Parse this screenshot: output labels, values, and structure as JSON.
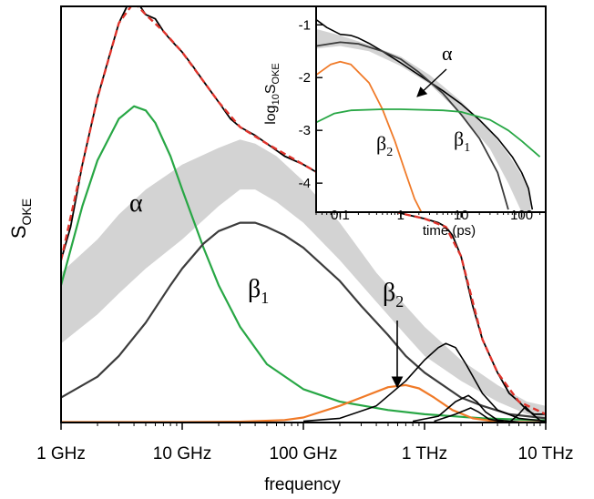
{
  "chart_data": [
    {
      "type": "line",
      "xlabel": "frequency",
      "ylabel_main": "S",
      "ylabel_sub": "OKE",
      "xscale": "log",
      "xlim": [
        1,
        10000
      ],
      "ylim": [
        0,
        1.0
      ],
      "xticks": [
        {
          "value": 1,
          "label": "1 GHz"
        },
        {
          "value": 10,
          "label": "10 GHz"
        },
        {
          "value": 100,
          "label": "100 GHz"
        },
        {
          "value": 1000,
          "label": "1 THz"
        },
        {
          "value": 10000,
          "label": "10 THz"
        }
      ],
      "annotations": {
        "alpha": "α",
        "beta": "β",
        "sub1": "1",
        "sub2": "2"
      },
      "colors": {
        "data": "#000000",
        "fit": "#e0342c",
        "alpha": "#28a745",
        "beta1": "#3c3c3c",
        "beta2": "#f07a28",
        "band": "#d3d3d3",
        "high": "#000000"
      },
      "series": [
        {
          "key": "data",
          "style": "solid black",
          "points": [
            [
              1,
              0.39
            ],
            [
              1.2,
              0.47
            ],
            [
              1.5,
              0.62
            ],
            [
              2,
              0.78
            ],
            [
              2.5,
              0.88
            ],
            [
              3,
              0.96
            ],
            [
              3.5,
              1.0
            ],
            [
              4,
              1.01
            ],
            [
              4.5,
              1.0
            ],
            [
              5,
              0.98
            ],
            [
              6,
              0.97
            ],
            [
              7,
              0.94
            ],
            [
              8,
              0.92
            ],
            [
              10,
              0.89
            ],
            [
              12,
              0.86
            ],
            [
              15,
              0.82
            ],
            [
              20,
              0.77
            ],
            [
              25,
              0.73
            ],
            [
              30,
              0.71
            ],
            [
              40,
              0.69
            ],
            [
              50,
              0.67
            ],
            [
              70,
              0.64
            ],
            [
              100,
              0.62
            ],
            [
              150,
              0.59
            ],
            [
              200,
              0.57
            ],
            [
              300,
              0.54
            ],
            [
              400,
              0.52
            ],
            [
              500,
              0.51
            ],
            [
              700,
              0.5
            ],
            [
              1000,
              0.49
            ],
            [
              1300,
              0.48
            ],
            [
              1500,
              0.47
            ],
            [
              1700,
              0.45
            ],
            [
              2000,
              0.4
            ],
            [
              2500,
              0.28
            ],
            [
              3000,
              0.2
            ],
            [
              4000,
              0.12
            ],
            [
              5000,
              0.07
            ],
            [
              6000,
              0.05
            ],
            [
              7000,
              0.03
            ],
            [
              8000,
              0.02
            ],
            [
              10000,
              0.02
            ]
          ]
        },
        {
          "key": "fit",
          "style": "dashed red",
          "points": [
            [
              1,
              0.39
            ],
            [
              1.5,
              0.62
            ],
            [
              2,
              0.78
            ],
            [
              3,
              0.96
            ],
            [
              4,
              1.01
            ],
            [
              5,
              0.98
            ],
            [
              7,
              0.94
            ],
            [
              10,
              0.89
            ],
            [
              15,
              0.82
            ],
            [
              20,
              0.77
            ],
            [
              30,
              0.71
            ],
            [
              50,
              0.67
            ],
            [
              100,
              0.62
            ],
            [
              200,
              0.57
            ],
            [
              400,
              0.52
            ],
            [
              700,
              0.5
            ],
            [
              1000,
              0.49
            ],
            [
              1500,
              0.47
            ],
            [
              2000,
              0.4
            ],
            [
              3000,
              0.2
            ],
            [
              4000,
              0.12
            ],
            [
              6000,
              0.05
            ],
            [
              10000,
              0.02
            ]
          ]
        },
        {
          "key": "alpha",
          "style": "solid green",
          "points": [
            [
              1,
              0.33
            ],
            [
              1.5,
              0.52
            ],
            [
              2,
              0.63
            ],
            [
              3,
              0.73
            ],
            [
              4,
              0.76
            ],
            [
              5,
              0.75
            ],
            [
              6,
              0.72
            ],
            [
              8,
              0.64
            ],
            [
              10,
              0.56
            ],
            [
              15,
              0.42
            ],
            [
              20,
              0.33
            ],
            [
              30,
              0.23
            ],
            [
              50,
              0.14
            ],
            [
              100,
              0.08
            ],
            [
              200,
              0.05
            ],
            [
              500,
              0.03
            ],
            [
              1000,
              0.02
            ],
            [
              3000,
              0.01
            ],
            [
              10000,
              0.005
            ]
          ]
        },
        {
          "key": "beta1",
          "style": "solid dark gray",
          "points": [
            [
              1,
              0.06
            ],
            [
              2,
              0.11
            ],
            [
              3,
              0.16
            ],
            [
              5,
              0.24
            ],
            [
              8,
              0.33
            ],
            [
              10,
              0.37
            ],
            [
              15,
              0.43
            ],
            [
              20,
              0.46
            ],
            [
              30,
              0.48
            ],
            [
              40,
              0.48
            ],
            [
              50,
              0.47
            ],
            [
              70,
              0.45
            ],
            [
              100,
              0.42
            ],
            [
              200,
              0.34
            ],
            [
              300,
              0.28
            ],
            [
              500,
              0.21
            ],
            [
              700,
              0.16
            ],
            [
              1000,
              0.12
            ],
            [
              2000,
              0.06
            ],
            [
              3000,
              0.04
            ],
            [
              5000,
              0.02
            ],
            [
              10000,
              0.01
            ]
          ]
        },
        {
          "key": "beta2",
          "style": "solid orange",
          "points": [
            [
              1,
              0.001
            ],
            [
              10,
              0.001
            ],
            [
              30,
              0.002
            ],
            [
              70,
              0.006
            ],
            [
              100,
              0.012
            ],
            [
              200,
              0.04
            ],
            [
              300,
              0.06
            ],
            [
              500,
              0.085
            ],
            [
              700,
              0.09
            ],
            [
              900,
              0.082
            ],
            [
              1200,
              0.06
            ],
            [
              1700,
              0.03
            ],
            [
              2500,
              0.01
            ],
            [
              4000,
              0.002
            ],
            [
              10000,
              0.0
            ]
          ]
        },
        {
          "key": "high_main",
          "style": "solid black",
          "points": [
            [
              100,
              0.003
            ],
            [
              200,
              0.01
            ],
            [
              400,
              0.04
            ],
            [
              700,
              0.1
            ],
            [
              1000,
              0.15
            ],
            [
              1300,
              0.18
            ],
            [
              1500,
              0.19
            ],
            [
              1800,
              0.18
            ],
            [
              2200,
              0.14
            ],
            [
              3000,
              0.07
            ],
            [
              4000,
              0.03
            ],
            [
              6000,
              0.01
            ],
            [
              10000,
              0.003
            ]
          ]
        },
        {
          "key": "high_b",
          "style": "solid black",
          "points": [
            [
              800,
              0.003
            ],
            [
              1300,
              0.015
            ],
            [
              1800,
              0.05
            ],
            [
              2300,
              0.065
            ],
            [
              2700,
              0.05
            ],
            [
              3200,
              0.025
            ],
            [
              4000,
              0.006
            ],
            [
              6000,
              0.001
            ]
          ]
        },
        {
          "key": "high_c",
          "style": "solid black",
          "points": [
            [
              1200,
              0.003
            ],
            [
              1800,
              0.02
            ],
            [
              2400,
              0.035
            ],
            [
              2800,
              0.025
            ],
            [
              3400,
              0.008
            ],
            [
              4500,
              0.001
            ]
          ]
        },
        {
          "key": "high_d",
          "style": "solid black",
          "points": [
            [
              5000,
              0.0
            ],
            [
              6000,
              0.02
            ],
            [
              6800,
              0.038
            ],
            [
              7800,
              0.02
            ],
            [
              9000,
              0.005
            ],
            [
              10000,
              0.0
            ]
          ]
        }
      ],
      "band": {
        "key": "band",
        "points": [
          [
            1,
            0.19,
            0.36
          ],
          [
            2,
            0.26,
            0.44
          ],
          [
            3,
            0.31,
            0.5
          ],
          [
            5,
            0.37,
            0.56
          ],
          [
            10,
            0.44,
            0.62
          ],
          [
            20,
            0.52,
            0.66
          ],
          [
            30,
            0.56,
            0.68
          ],
          [
            40,
            0.56,
            0.67
          ],
          [
            60,
            0.53,
            0.64
          ],
          [
            100,
            0.48,
            0.58
          ],
          [
            200,
            0.39,
            0.48
          ],
          [
            400,
            0.29,
            0.36
          ],
          [
            700,
            0.21,
            0.28
          ],
          [
            1000,
            0.16,
            0.23
          ],
          [
            2000,
            0.1,
            0.15
          ],
          [
            4000,
            0.05,
            0.09
          ],
          [
            7000,
            0.02,
            0.05
          ],
          [
            10000,
            0.01,
            0.04
          ]
        ]
      }
    },
    {
      "type": "line",
      "xlabel": "time (ps)",
      "ylabel_main": "log",
      "ylabel_sub1": "10",
      "ylabel_mid": "S",
      "ylabel_sub2": "OKE",
      "xscale": "log",
      "xlim": [
        0.04,
        250
      ],
      "ylim": [
        -4.55,
        -0.65
      ],
      "xticks": [
        {
          "value": 0.1,
          "label": "0.1"
        },
        {
          "value": 1,
          "label": "1"
        },
        {
          "value": 10,
          "label": "10"
        },
        {
          "value": 100,
          "label": "100"
        }
      ],
      "yticks": [
        {
          "value": -1,
          "label": "-1"
        },
        {
          "value": -2,
          "label": "-2"
        },
        {
          "value": -3,
          "label": "-3"
        },
        {
          "value": -4,
          "label": "-4"
        }
      ],
      "colors": {
        "data": "#000000",
        "alpha": "#28a745",
        "beta1": "#3c3c3c",
        "beta2": "#f07a28",
        "band": "#d3d3d3"
      },
      "series": [
        {
          "key": "data",
          "style": "solid black",
          "points": [
            [
              0.04,
              -0.9
            ],
            [
              0.06,
              -1.05
            ],
            [
              0.1,
              -1.18
            ],
            [
              0.15,
              -1.2
            ],
            [
              0.2,
              -1.25
            ],
            [
              0.3,
              -1.35
            ],
            [
              0.5,
              -1.5
            ],
            [
              1,
              -1.72
            ],
            [
              2,
              -1.95
            ],
            [
              5,
              -2.25
            ],
            [
              10,
              -2.5
            ],
            [
              20,
              -2.8
            ],
            [
              40,
              -3.15
            ],
            [
              70,
              -3.5
            ],
            [
              100,
              -3.8
            ],
            [
              130,
              -4.1
            ],
            [
              150,
              -4.5
            ]
          ]
        },
        {
          "key": "beta1",
          "style": "solid dark gray",
          "points": [
            [
              0.04,
              -1.4
            ],
            [
              0.1,
              -1.33
            ],
            [
              0.2,
              -1.36
            ],
            [
              0.5,
              -1.5
            ],
            [
              1,
              -1.65
            ],
            [
              2,
              -1.9
            ],
            [
              5,
              -2.3
            ],
            [
              10,
              -2.7
            ],
            [
              20,
              -3.15
            ],
            [
              40,
              -3.8
            ],
            [
              60,
              -4.5
            ]
          ]
        },
        {
          "key": "beta2",
          "style": "solid orange",
          "points": [
            [
              0.04,
              -1.95
            ],
            [
              0.07,
              -1.75
            ],
            [
              0.1,
              -1.7
            ],
            [
              0.15,
              -1.75
            ],
            [
              0.3,
              -2.1
            ],
            [
              0.5,
              -2.6
            ],
            [
              0.8,
              -3.2
            ],
            [
              1.2,
              -3.8
            ],
            [
              1.7,
              -4.3
            ],
            [
              2.2,
              -4.55
            ]
          ]
        },
        {
          "key": "alpha",
          "style": "solid green",
          "points": [
            [
              0.04,
              -2.85
            ],
            [
              0.08,
              -2.68
            ],
            [
              0.15,
              -2.62
            ],
            [
              0.5,
              -2.6
            ],
            [
              1,
              -2.6
            ],
            [
              5,
              -2.62
            ],
            [
              10,
              -2.65
            ],
            [
              30,
              -2.8
            ],
            [
              60,
              -3.0
            ],
            [
              100,
              -3.2
            ],
            [
              200,
              -3.5
            ]
          ]
        }
      ],
      "band": {
        "key": "band",
        "points": [
          [
            0.04,
            -1.45,
            -1.08
          ],
          [
            0.1,
            -1.4,
            -1.2
          ],
          [
            0.3,
            -1.5,
            -1.38
          ],
          [
            1,
            -1.78,
            -1.6
          ],
          [
            3,
            -2.12,
            -1.95
          ],
          [
            10,
            -2.7,
            -2.45
          ],
          [
            30,
            -3.35,
            -3.0
          ],
          [
            60,
            -4.0,
            -3.45
          ],
          [
            100,
            -4.55,
            -3.85
          ],
          [
            140,
            -4.55,
            -4.2
          ]
        ]
      },
      "annotations": {
        "alpha": "α",
        "beta": "β",
        "sub1": "1",
        "sub2": "2"
      }
    }
  ]
}
